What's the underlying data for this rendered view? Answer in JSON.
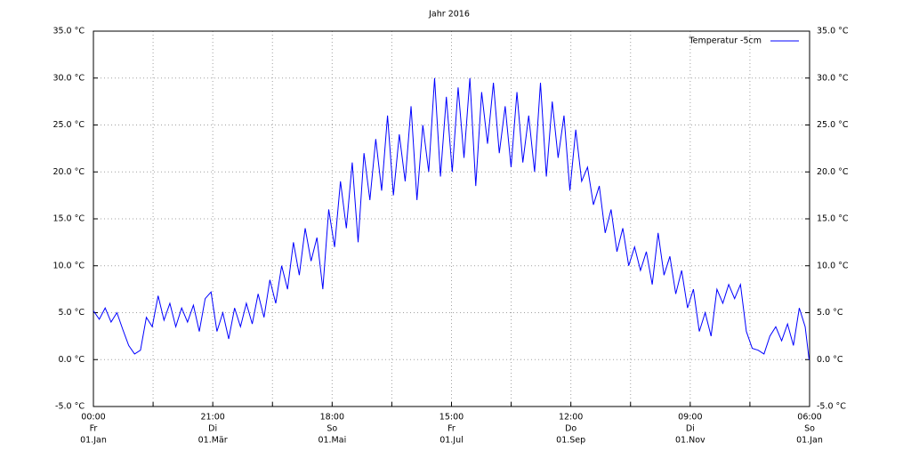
{
  "chart_data": {
    "type": "line",
    "title": "Jahr 2016",
    "x": [
      0,
      3,
      6,
      9,
      12,
      15,
      18,
      21,
      24,
      27,
      30,
      33,
      36,
      39,
      42,
      45,
      48,
      51,
      54,
      57,
      60,
      63,
      66,
      69,
      72,
      75,
      78,
      81,
      84,
      87,
      90,
      93,
      96,
      99,
      102,
      105,
      108,
      111,
      114,
      117,
      120,
      123,
      126,
      129,
      132,
      135,
      138,
      141,
      144,
      147,
      150,
      153,
      156,
      159,
      162,
      165,
      168,
      171,
      174,
      177,
      180,
      183,
      186,
      189,
      192,
      195,
      198,
      201,
      204,
      207,
      210,
      213,
      216,
      219,
      222,
      225,
      228,
      231,
      234,
      237,
      240,
      243,
      246,
      249,
      252,
      255,
      258,
      261,
      264,
      267,
      270,
      273,
      276,
      279,
      282,
      285,
      288,
      291,
      294,
      297,
      300,
      303,
      306,
      309,
      312,
      315,
      318,
      321,
      324,
      327,
      330,
      333,
      336,
      339,
      342,
      345,
      348,
      351,
      354,
      357,
      360,
      363,
      365
    ],
    "series": [
      {
        "name": "Temperatur  -5cm",
        "color": "#0000ff",
        "values": [
          5.2,
          4.3,
          5.5,
          4.0,
          5.0,
          3.2,
          1.5,
          0.6,
          1.0,
          4.5,
          3.5,
          6.8,
          4.2,
          6.0,
          3.5,
          5.5,
          4.0,
          5.8,
          3.0,
          6.5,
          7.2,
          3.0,
          5.0,
          2.2,
          5.5,
          3.5,
          6.0,
          3.8,
          7.0,
          4.5,
          8.5,
          6.0,
          10.0,
          7.5,
          12.5,
          9.0,
          14.0,
          10.5,
          13.0,
          7.5,
          16.0,
          12.0,
          19.0,
          14.0,
          21.0,
          12.5,
          22.0,
          17.0,
          23.5,
          18.0,
          26.0,
          17.5,
          24.0,
          19.0,
          27.0,
          17.0,
          25.0,
          20.0,
          30.0,
          19.5,
          28.0,
          20.0,
          29.0,
          21.5,
          30.0,
          18.5,
          28.5,
          23.0,
          29.5,
          22.0,
          27.0,
          20.5,
          28.5,
          21.0,
          26.0,
          20.0,
          29.5,
          19.5,
          27.5,
          21.5,
          26.0,
          18.0,
          24.5,
          19.0,
          20.5,
          16.5,
          18.5,
          13.5,
          16.0,
          11.5,
          14.0,
          10.0,
          12.0,
          9.5,
          11.5,
          8.0,
          13.5,
          9.0,
          11.0,
          7.0,
          9.5,
          5.5,
          7.5,
          3.0,
          5.0,
          2.5,
          7.5,
          6.0,
          8.0,
          6.5,
          8.0,
          3.0,
          1.2,
          1.0,
          0.6,
          2.5,
          3.5,
          2.0,
          3.8,
          1.5,
          5.5,
          3.5,
          0.0
        ]
      }
    ],
    "xlim": [
      0,
      365.25
    ],
    "xticks": [
      {
        "value": 0,
        "label": [
          "00:00",
          "Fr",
          "01.Jan"
        ]
      },
      {
        "value": 30.4375,
        "label": null
      },
      {
        "value": 60.875,
        "label": [
          "21:00",
          "Di",
          "01.Mär"
        ]
      },
      {
        "value": 91.3125,
        "label": null
      },
      {
        "value": 121.75,
        "label": [
          "18:00",
          "So",
          "01.Mai"
        ]
      },
      {
        "value": 152.1875,
        "label": null
      },
      {
        "value": 182.625,
        "label": [
          "15:00",
          "Fr",
          "01.Jul"
        ]
      },
      {
        "value": 213.0625,
        "label": null
      },
      {
        "value": 243.5,
        "label": [
          "12:00",
          "Do",
          "01.Sep"
        ]
      },
      {
        "value": 273.9375,
        "label": null
      },
      {
        "value": 304.375,
        "label": [
          "09:00",
          "Di",
          "01.Nov"
        ]
      },
      {
        "value": 334.8125,
        "label": null
      },
      {
        "value": 365.25,
        "label": [
          "06:00",
          "So",
          "01.Jan"
        ]
      }
    ],
    "ylim": [
      -5,
      35
    ],
    "yticks": [
      {
        "value": -5,
        "label": "-5.0 °C"
      },
      {
        "value": 0,
        "label": "0.0 °C"
      },
      {
        "value": 5,
        "label": "5.0 °C"
      },
      {
        "value": 10,
        "label": "10.0 °C"
      },
      {
        "value": 15,
        "label": "15.0 °C"
      },
      {
        "value": 20,
        "label": "20.0 °C"
      },
      {
        "value": 25,
        "label": "25.0 °C"
      },
      {
        "value": 30,
        "label": "30.0 °C"
      },
      {
        "value": 35,
        "label": "35.0 °C"
      }
    ],
    "y2lim": [
      -5,
      35
    ],
    "y2ticks": [
      {
        "value": -5,
        "label": "-5.0 °C"
      },
      {
        "value": 0,
        "label": "0.0 °C"
      },
      {
        "value": 5,
        "label": "5.0 °C"
      },
      {
        "value": 10,
        "label": "10.0 °C"
      },
      {
        "value": 15,
        "label": "15.0 °C"
      },
      {
        "value": 20,
        "label": "20.0 °C"
      },
      {
        "value": 25,
        "label": "25.0 °C"
      },
      {
        "value": 30,
        "label": "30.0 °C"
      },
      {
        "value": 35,
        "label": "35.0 °C"
      }
    ],
    "grid": true,
    "legend": "top-right"
  }
}
